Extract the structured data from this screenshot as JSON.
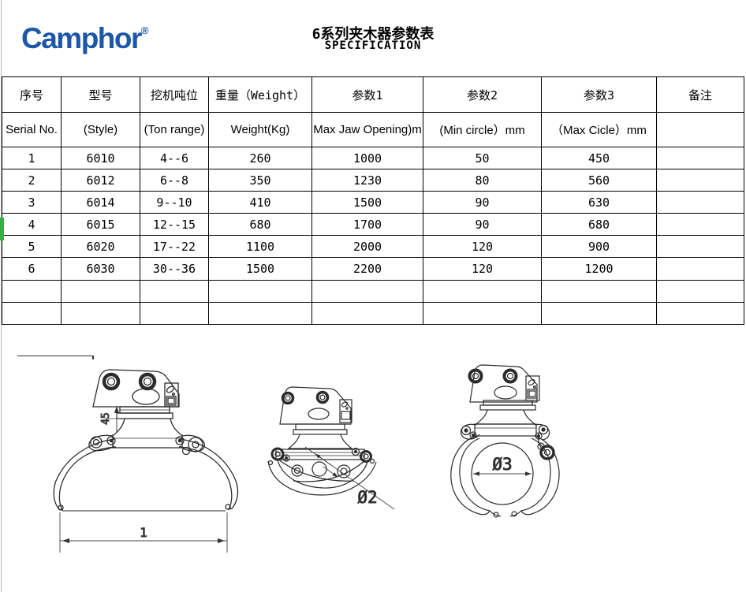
{
  "logo": {
    "text": "Camphor",
    "registered": "®"
  },
  "title": {
    "cn": "6系列夹木器参数表",
    "en": "SPECIFICATION"
  },
  "table": {
    "header_cn": [
      "序号",
      "型号",
      "挖机吨位",
      "重量（Weight）",
      "参数1",
      "参数2",
      "参数3",
      "备注"
    ],
    "header_en": [
      "Serial No.",
      "(Style)",
      "(Ton range)",
      "Weight(Kg)",
      "Max Jaw Opening)m",
      "(Min circle）mm",
      "（Max Cicle）mm",
      ""
    ],
    "rows": [
      [
        "1",
        "6010",
        "4--6",
        "260",
        "1000",
        "50",
        "450",
        ""
      ],
      [
        "2",
        "6012",
        "6--8",
        "350",
        "1230",
        "80",
        "560",
        ""
      ],
      [
        "3",
        "6014",
        "9--10",
        "410",
        "1500",
        "90",
        "630",
        ""
      ],
      [
        "4",
        "6015",
        "12--15",
        "680",
        "1700",
        "90",
        "680",
        ""
      ],
      [
        "5",
        "6020",
        "17--22",
        "1100",
        "2000",
        "120",
        "900",
        ""
      ],
      [
        "6",
        "6030",
        "30--36",
        "1500",
        "2200",
        "120",
        "1200",
        ""
      ],
      [
        "",
        "",
        "",
        "",
        "",
        "",
        "",
        ""
      ],
      [
        "",
        "",
        "",
        "",
        "",
        "",
        "",
        ""
      ]
    ]
  },
  "drawings": {
    "open_grapple": {
      "dim_height": "45",
      "dim_width": "1"
    },
    "closed_grapple": {
      "dim_diameter": "Ø2"
    },
    "closed_grapple_log": {
      "dim_diameter": "Ø3"
    }
  },
  "colors": {
    "logo_blue": "#1d57a7",
    "selection_green": "#33b142"
  }
}
